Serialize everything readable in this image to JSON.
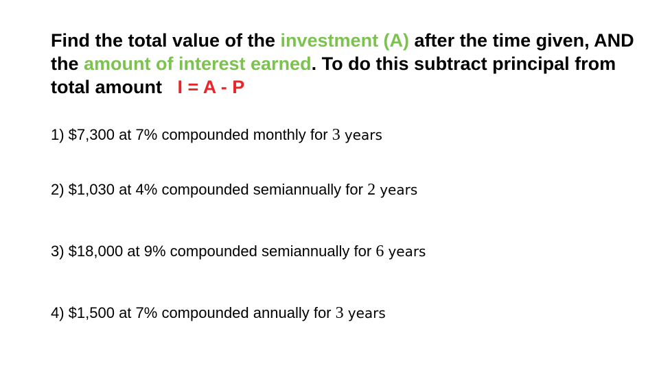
{
  "title": {
    "part1": "Find the total value of the ",
    "highlight1": "investment (A)",
    "part2": " after the time given, AND the ",
    "highlight2": "amount of interest earned",
    "part3": ". To do this subtract principal from total amount",
    "formula": "I = A - P"
  },
  "colors": {
    "green": "#7cc24e",
    "red": "#e8262a"
  },
  "problems": [
    {
      "text": "1)  $7,300 at 7% compounded monthly for ",
      "years_value": "3",
      "years_unit": "years"
    },
    {
      "text": "2) $1,030 at 4% compounded semiannually for ",
      "years_value": "2",
      "years_unit": "years"
    },
    {
      "text": "3) $18,000 at 9% compounded semiannually for ",
      "years_value": "6",
      "years_unit": "years"
    },
    {
      "text": "4) $1,500 at 7% compounded annually for ",
      "years_value": "3",
      "years_unit": "years"
    }
  ]
}
